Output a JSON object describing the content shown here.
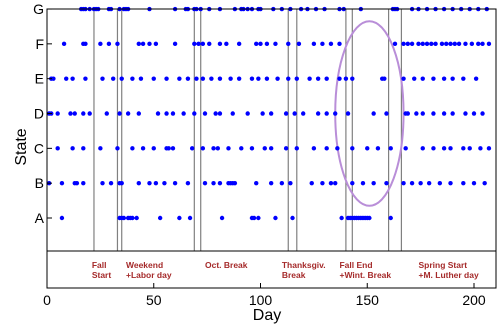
{
  "chart_data": {
    "type": "scatter",
    "xlabel": "Day",
    "ylabel": "State",
    "xlim": [
      0,
      208
    ],
    "xticks": [
      "0",
      "50",
      "100",
      "150",
      "200"
    ],
    "states": [
      "A",
      "B",
      "C",
      "D",
      "E",
      "F",
      "G"
    ],
    "grid": false,
    "marker_color": "#0000ff",
    "event_line_color": "#808080",
    "annotation_color": "#a52a2a",
    "highlight_color": "#b98ed8",
    "event_lines": [
      22,
      33,
      35,
      69,
      72,
      113,
      117,
      140,
      143,
      160,
      166
    ],
    "annotations": [
      {
        "x": 21,
        "lines": [
          "Fall",
          "Start"
        ]
      },
      {
        "x": 37,
        "lines": [
          "Weekend",
          "+Labor day"
        ]
      },
      {
        "x": 74,
        "lines": [
          "Oct. Break"
        ]
      },
      {
        "x": 110,
        "lines": [
          "Thanksgiv.",
          "Break"
        ]
      },
      {
        "x": 137,
        "lines": [
          "Fall End",
          "+Wint. Break"
        ]
      },
      {
        "x": 174,
        "lines": [
          "Spring Start",
          "+M. Luther day"
        ]
      }
    ],
    "highlight": {
      "cx": 151,
      "cy_state": 3,
      "rx_days": 16,
      "ry_states": 2.65
    },
    "series": [
      {
        "state": "A",
        "days": [
          7,
          34,
          35,
          36,
          38,
          39,
          40,
          42,
          53,
          62,
          67,
          82,
          96,
          97,
          99,
          107,
          115,
          138,
          141,
          142,
          143,
          144,
          145,
          146,
          147,
          148,
          149,
          150,
          151,
          161
        ]
      },
      {
        "state": "B",
        "days": [
          1,
          7,
          13,
          14,
          17,
          26,
          30,
          34,
          35,
          43,
          48,
          51,
          55,
          60,
          66,
          74,
          78,
          81,
          85,
          86,
          87,
          88,
          98,
          105,
          110,
          114,
          124,
          129,
          133,
          135,
          143,
          148,
          153,
          159,
          167,
          171,
          175,
          179,
          184,
          189,
          195,
          200,
          205
        ]
      },
      {
        "state": "C",
        "days": [
          5,
          12,
          17,
          25,
          33,
          40,
          45,
          50,
          56,
          57,
          59,
          68,
          73,
          78,
          80,
          85,
          91,
          96,
          102,
          105,
          112,
          117,
          125,
          131,
          136,
          143,
          150,
          155,
          161,
          168,
          176,
          181,
          186,
          189,
          195,
          198,
          203,
          207
        ]
      },
      {
        "state": "D",
        "days": [
          1,
          2,
          5,
          11,
          13,
          17,
          20,
          28,
          34,
          38,
          43,
          52,
          56,
          59,
          64,
          69,
          74,
          79,
          81,
          87,
          94,
          101,
          105,
          112,
          116,
          120,
          127,
          131,
          135,
          141,
          153,
          159,
          168,
          169,
          173,
          176,
          181,
          186,
          190,
          196,
          200,
          204
        ]
      },
      {
        "state": "E",
        "days": [
          2,
          3,
          9,
          12,
          18,
          26,
          31,
          35,
          40,
          44,
          50,
          56,
          62,
          66,
          70,
          73,
          77,
          81,
          86,
          90,
          96,
          99,
          103,
          108,
          113,
          117,
          123,
          127,
          131,
          137,
          140,
          143,
          157,
          158,
          167,
          172,
          176,
          181,
          186,
          190,
          195,
          201
        ]
      },
      {
        "state": "F",
        "days": [
          8,
          17,
          18,
          25,
          29,
          33,
          43,
          45,
          48,
          51,
          60,
          69,
          71,
          73,
          76,
          81,
          84,
          90,
          98,
          100,
          103,
          107,
          113,
          118,
          125,
          129,
          133,
          137,
          163,
          167,
          169,
          171,
          174,
          176,
          178,
          180,
          182,
          185,
          187,
          189,
          191,
          193,
          196,
          199,
          202,
          204,
          207
        ]
      },
      {
        "state": "G",
        "days": [
          16,
          17,
          18,
          20,
          22,
          23,
          24,
          29,
          30,
          34,
          36,
          37,
          38,
          48,
          60,
          65,
          66,
          69,
          70,
          72,
          76,
          81,
          88,
          91,
          92,
          94,
          96,
          99,
          100,
          106,
          110,
          114,
          119,
          122,
          126,
          130,
          137,
          139,
          147,
          162,
          163,
          164,
          171,
          174,
          178,
          182,
          186,
          190,
          194,
          198,
          202,
          206
        ]
      }
    ]
  }
}
